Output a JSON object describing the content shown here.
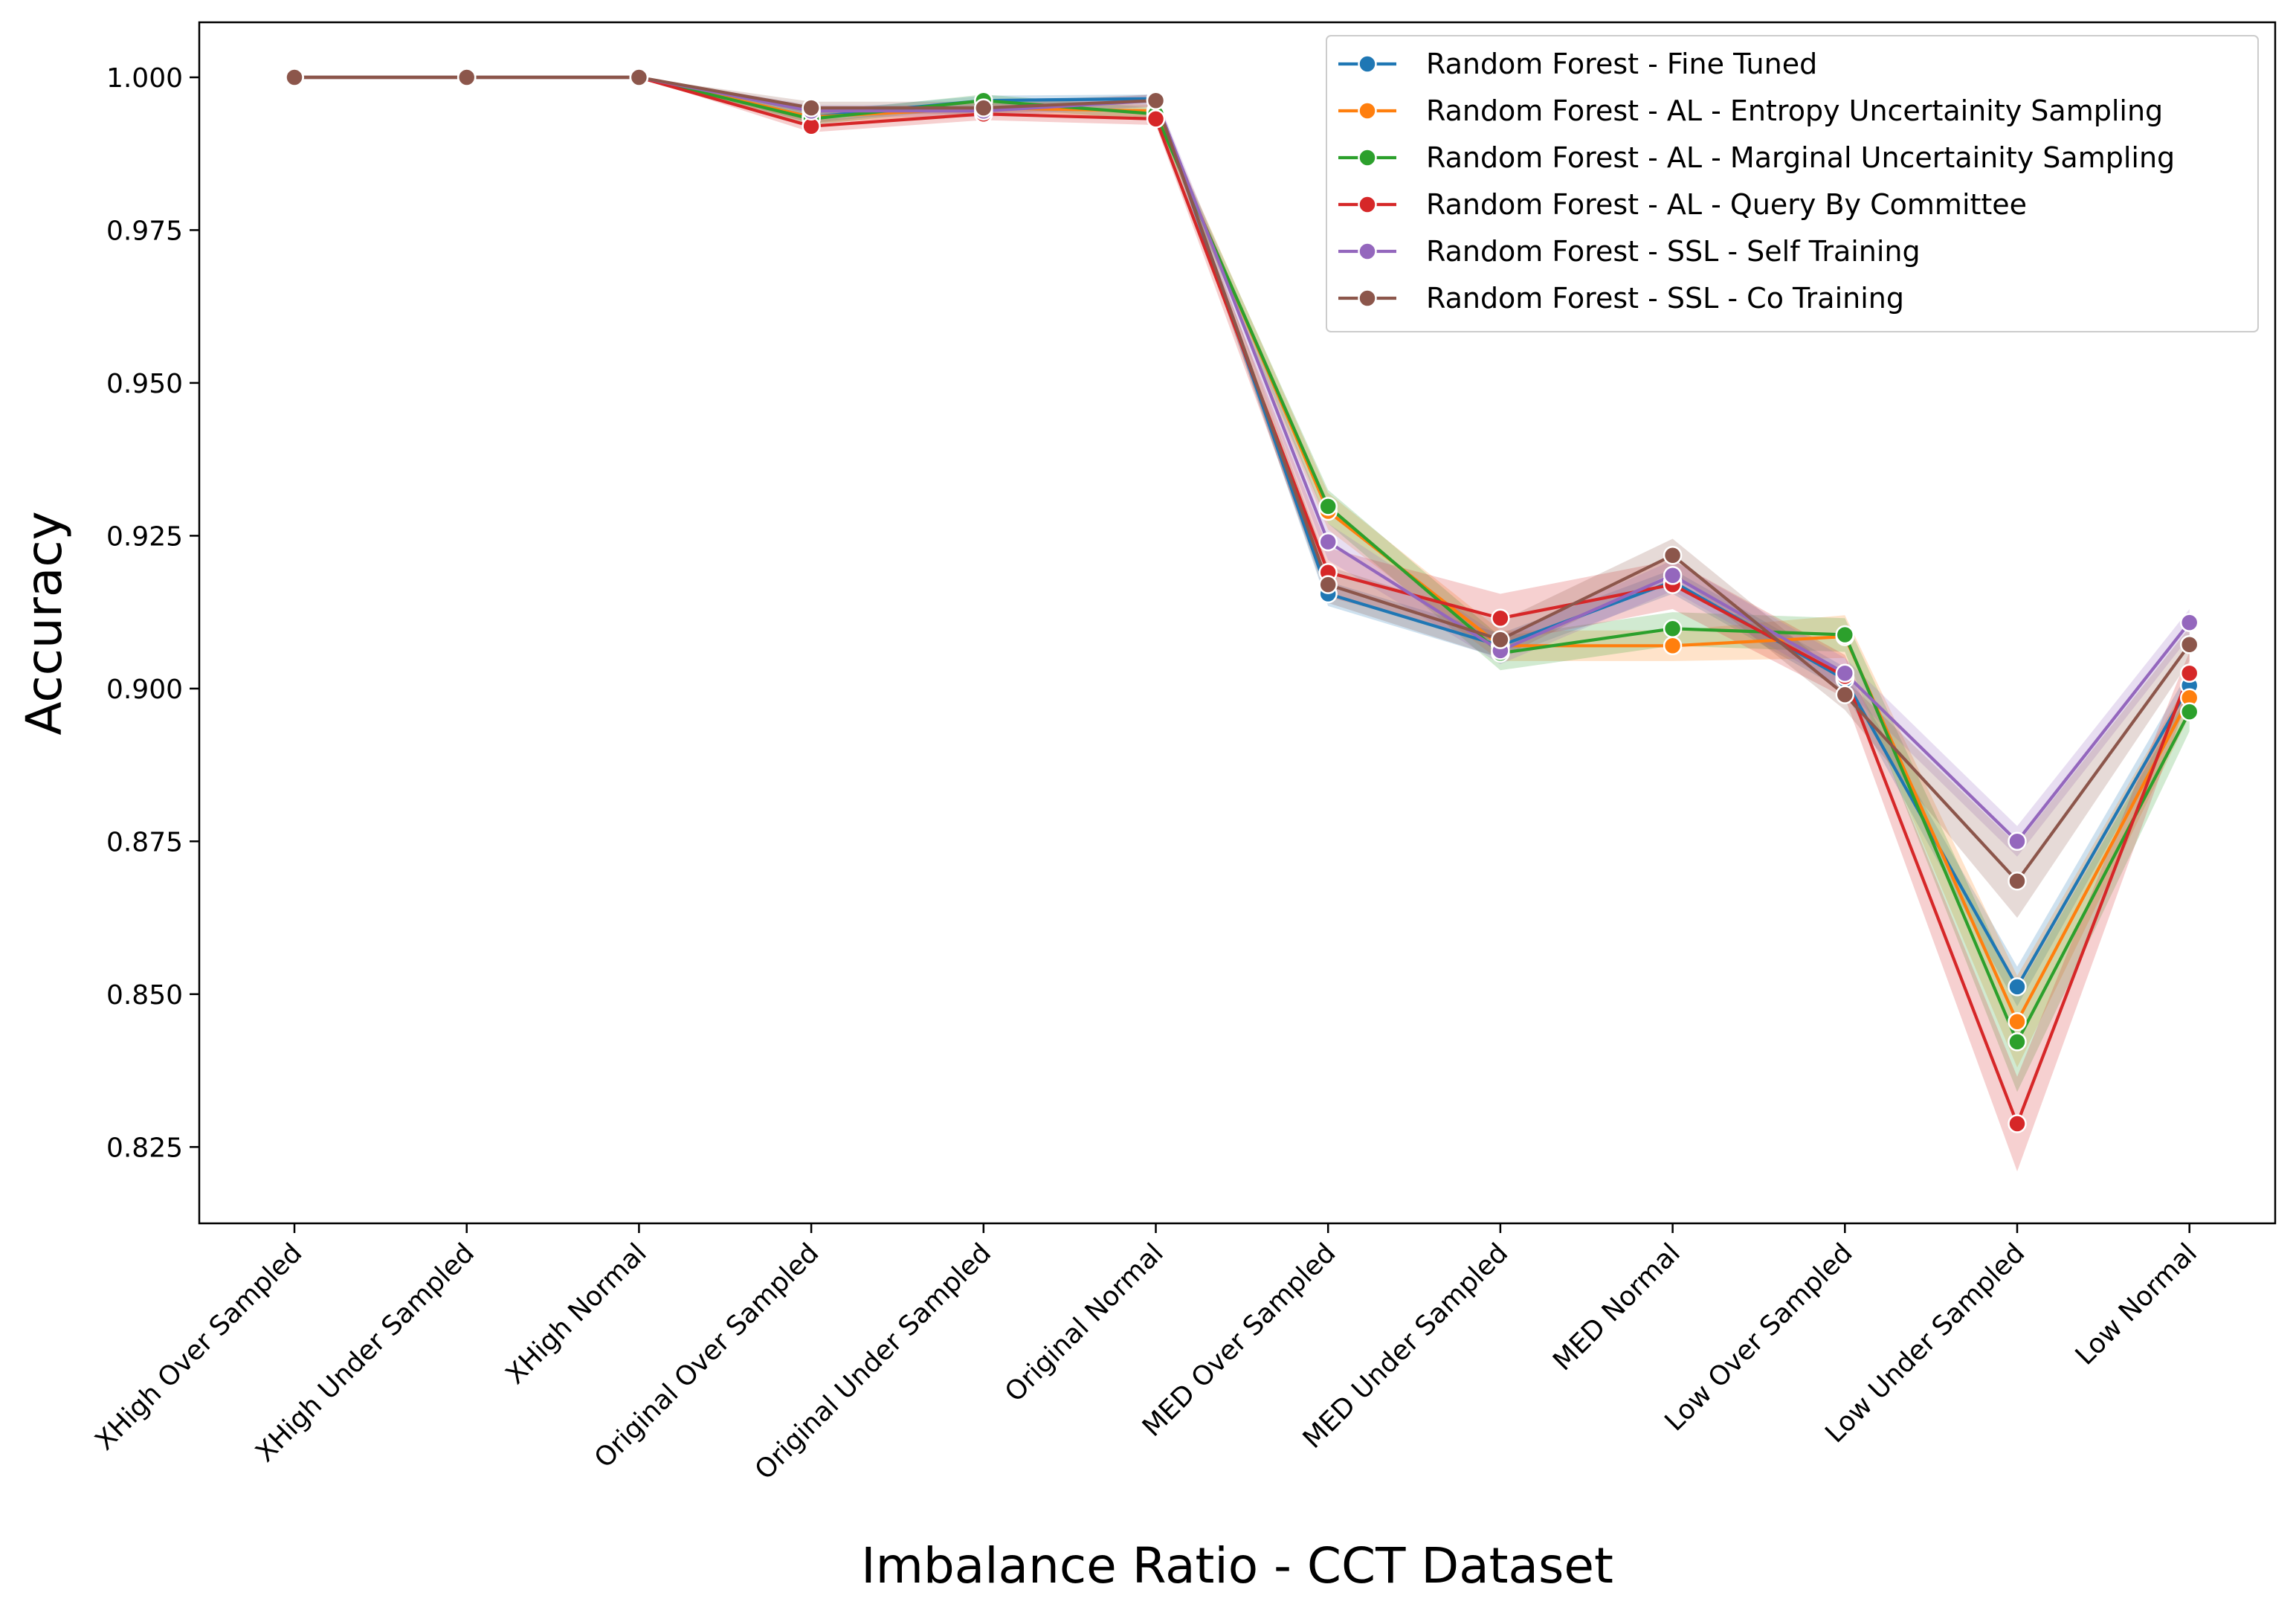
{
  "chart_data": {
    "type": "line",
    "title": "",
    "xlabel": "Imbalance Ratio - CCT Dataset",
    "ylabel": "Accuracy",
    "categories": [
      "XHigh Over Sampled",
      "XHigh Under Sampled",
      "XHigh Normal",
      "Original Over Sampled",
      "Original Under Sampled",
      "Original Normal",
      "MED Over Sampled",
      "MED Under Sampled",
      "MED Normal",
      "Low Over Sampled",
      "Low Under Sampled",
      "Low Normal"
    ],
    "ylim": [
      0.8125,
      1.009
    ],
    "yticks": [
      0.825,
      0.85,
      0.875,
      0.9,
      0.925,
      0.95,
      0.975,
      1.0
    ],
    "ytick_labels": [
      "0.825",
      "0.850",
      "0.875",
      "0.900",
      "0.925",
      "0.950",
      "0.975",
      "1.000"
    ],
    "grid": false,
    "legend_position": "top-right",
    "series": [
      {
        "name": "Random Forest - Fine Tuned",
        "color": "#1f77b4",
        "values": [
          1.0,
          1.0,
          1.0,
          0.9935,
          0.9962,
          0.9965,
          0.9155,
          0.907,
          0.9175,
          0.9015,
          0.8512,
          0.9005
        ],
        "band": [
          [
            1.0,
            1.0
          ],
          [
            1.0,
            1.0
          ],
          [
            1.0,
            1.0
          ],
          [
            0.9925,
            0.9945
          ],
          [
            0.9955,
            0.997
          ],
          [
            0.9958,
            0.9972
          ],
          [
            0.9135,
            0.9175
          ],
          [
            0.905,
            0.909
          ],
          [
            0.9155,
            0.9195
          ],
          [
            0.8995,
            0.9035
          ],
          [
            0.848,
            0.8545
          ],
          [
            0.898,
            0.903
          ]
        ]
      },
      {
        "name": "Random Forest - AL - Entropy Uncertainity Sampling",
        "color": "#ff7f0e",
        "values": [
          1.0,
          1.0,
          1.0,
          0.9935,
          0.995,
          0.9945,
          0.929,
          0.907,
          0.907,
          0.9085,
          0.8455,
          0.8985
        ],
        "band": [
          [
            1.0,
            1.0
          ],
          [
            1.0,
            1.0
          ],
          [
            1.0,
            1.0
          ],
          [
            0.9925,
            0.9945
          ],
          [
            0.994,
            0.996
          ],
          [
            0.9935,
            0.9955
          ],
          [
            0.926,
            0.932
          ],
          [
            0.9045,
            0.9095
          ],
          [
            0.9045,
            0.9095
          ],
          [
            0.905,
            0.912
          ],
          [
            0.838,
            0.853
          ],
          [
            0.8955,
            0.9015
          ]
        ]
      },
      {
        "name": "Random Forest - AL - Marginal Uncertainity Sampling",
        "color": "#2ca02c",
        "values": [
          1.0,
          1.0,
          1.0,
          0.9932,
          0.9962,
          0.994,
          0.9298,
          0.9058,
          0.9098,
          0.9088,
          0.8422,
          0.8962
        ],
        "band": [
          [
            1.0,
            1.0
          ],
          [
            1.0,
            1.0
          ],
          [
            1.0,
            1.0
          ],
          [
            0.9922,
            0.9942
          ],
          [
            0.9952,
            0.9972
          ],
          [
            0.993,
            0.995
          ],
          [
            0.927,
            0.9325
          ],
          [
            0.903,
            0.9085
          ],
          [
            0.907,
            0.9125
          ],
          [
            0.906,
            0.9115
          ],
          [
            0.834,
            0.8505
          ],
          [
            0.893,
            0.8995
          ]
        ]
      },
      {
        "name": "Random Forest - AL - Query By Committee",
        "color": "#d62728",
        "values": [
          1.0,
          1.0,
          1.0,
          0.992,
          0.994,
          0.9932,
          0.919,
          0.9115,
          0.917,
          0.902,
          0.8288,
          0.9025
        ],
        "band": [
          [
            1.0,
            1.0
          ],
          [
            1.0,
            1.0
          ],
          [
            1.0,
            1.0
          ],
          [
            0.991,
            0.993
          ],
          [
            0.993,
            0.995
          ],
          [
            0.9922,
            0.9942
          ],
          [
            0.915,
            0.923
          ],
          [
            0.9075,
            0.9155
          ],
          [
            0.913,
            0.921
          ],
          [
            0.8985,
            0.9055
          ],
          [
            0.821,
            0.8365
          ],
          [
            0.899,
            0.906
          ]
        ]
      },
      {
        "name": "Random Forest - SSL - Self Training",
        "color": "#9467bd",
        "values": [
          1.0,
          1.0,
          1.0,
          0.9945,
          0.9945,
          0.9962,
          0.924,
          0.9062,
          0.9185,
          0.9025,
          0.875,
          0.9108
        ],
        "band": [
          [
            1.0,
            1.0
          ],
          [
            1.0,
            1.0
          ],
          [
            1.0,
            1.0
          ],
          [
            0.9935,
            0.9955
          ],
          [
            0.9935,
            0.9955
          ],
          [
            0.9952,
            0.9972
          ],
          [
            0.921,
            0.927
          ],
          [
            0.904,
            0.9085
          ],
          [
            0.916,
            0.921
          ],
          [
            0.9,
            0.905
          ],
          [
            0.8725,
            0.8775
          ],
          [
            0.9085,
            0.913
          ]
        ]
      },
      {
        "name": "Random Forest - SSL - Co Training",
        "color": "#8c564b",
        "values": [
          1.0,
          1.0,
          1.0,
          0.995,
          0.995,
          0.9962,
          0.917,
          0.908,
          0.9218,
          0.899,
          0.8685,
          0.9072
        ],
        "band": [
          [
            1.0,
            1.0
          ],
          [
            1.0,
            1.0
          ],
          [
            1.0,
            1.0
          ],
          [
            0.994,
            0.996
          ],
          [
            0.994,
            0.996
          ],
          [
            0.9952,
            0.9972
          ],
          [
            0.914,
            0.92
          ],
          [
            0.905,
            0.911
          ],
          [
            0.919,
            0.9245
          ],
          [
            0.8965,
            0.9015
          ],
          [
            0.8625,
            0.8745
          ],
          [
            0.9045,
            0.91
          ]
        ]
      }
    ]
  }
}
